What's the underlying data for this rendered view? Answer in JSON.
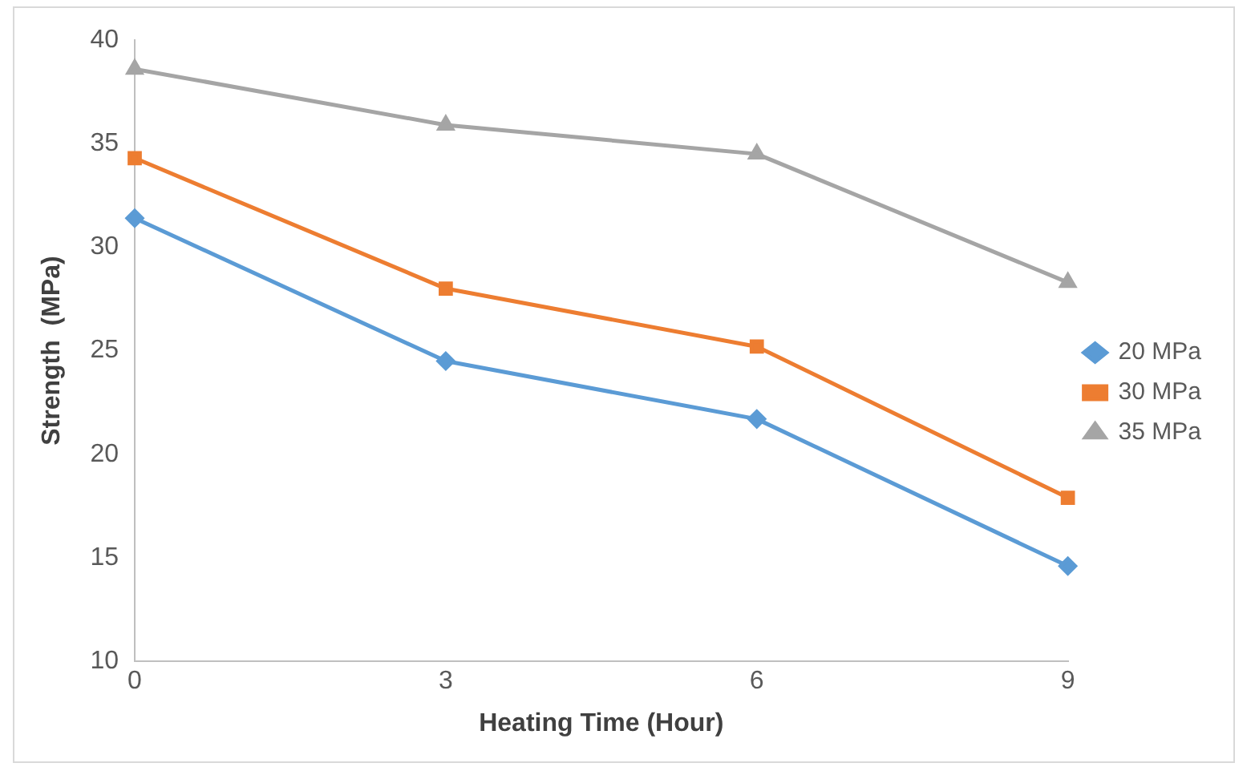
{
  "chart_data": {
    "type": "line",
    "xlabel": "Heating Time (Hour)",
    "ylabel": "Strength  (MPa)",
    "x": [
      0,
      3,
      6,
      9
    ],
    "xlim": [
      0,
      9
    ],
    "xticks": [
      0,
      3,
      6,
      9
    ],
    "ylim": [
      10,
      40
    ],
    "yticks": [
      10,
      15,
      20,
      25,
      30,
      35,
      40
    ],
    "grid": false,
    "legend": "right",
    "series": [
      {
        "name": "20 MPa",
        "color": "#5b9bd5",
        "marker": "diamond",
        "values": [
          31.4,
          24.5,
          21.7,
          14.6
        ]
      },
      {
        "name": "30 MPa",
        "color": "#ed7d31",
        "marker": "square",
        "values": [
          34.3,
          28.0,
          25.2,
          17.9
        ]
      },
      {
        "name": "35 MPa",
        "color": "#a5a5a5",
        "marker": "triangle",
        "values": [
          38.6,
          35.9,
          34.5,
          28.3
        ]
      }
    ]
  }
}
